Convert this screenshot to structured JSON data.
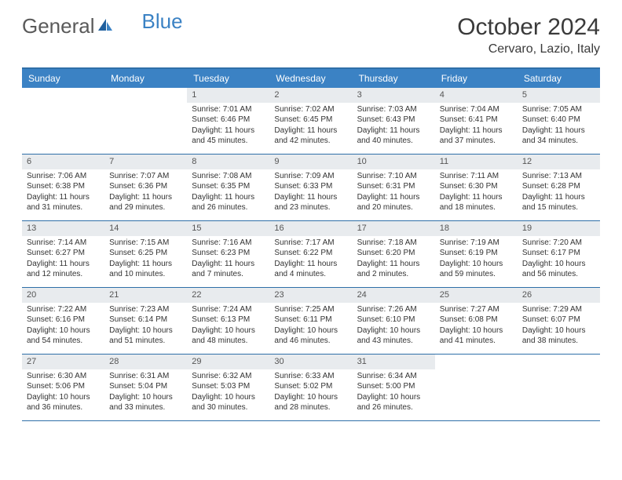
{
  "brand": {
    "part1": "General",
    "part2": "Blue"
  },
  "title": "October 2024",
  "location": "Cervaro, Lazio, Italy",
  "colors": {
    "header_bg": "#3b82c4",
    "border": "#2f6fa8",
    "daynum_bg": "#e8ebee",
    "text": "#333333",
    "brand_gray": "#5a5a5a"
  },
  "day_names": [
    "Sunday",
    "Monday",
    "Tuesday",
    "Wednesday",
    "Thursday",
    "Friday",
    "Saturday"
  ],
  "weeks": [
    [
      null,
      null,
      {
        "n": "1",
        "sr": "7:01 AM",
        "ss": "6:46 PM",
        "dl": "11 hours and 45 minutes."
      },
      {
        "n": "2",
        "sr": "7:02 AM",
        "ss": "6:45 PM",
        "dl": "11 hours and 42 minutes."
      },
      {
        "n": "3",
        "sr": "7:03 AM",
        "ss": "6:43 PM",
        "dl": "11 hours and 40 minutes."
      },
      {
        "n": "4",
        "sr": "7:04 AM",
        "ss": "6:41 PM",
        "dl": "11 hours and 37 minutes."
      },
      {
        "n": "5",
        "sr": "7:05 AM",
        "ss": "6:40 PM",
        "dl": "11 hours and 34 minutes."
      }
    ],
    [
      {
        "n": "6",
        "sr": "7:06 AM",
        "ss": "6:38 PM",
        "dl": "11 hours and 31 minutes."
      },
      {
        "n": "7",
        "sr": "7:07 AM",
        "ss": "6:36 PM",
        "dl": "11 hours and 29 minutes."
      },
      {
        "n": "8",
        "sr": "7:08 AM",
        "ss": "6:35 PM",
        "dl": "11 hours and 26 minutes."
      },
      {
        "n": "9",
        "sr": "7:09 AM",
        "ss": "6:33 PM",
        "dl": "11 hours and 23 minutes."
      },
      {
        "n": "10",
        "sr": "7:10 AM",
        "ss": "6:31 PM",
        "dl": "11 hours and 20 minutes."
      },
      {
        "n": "11",
        "sr": "7:11 AM",
        "ss": "6:30 PM",
        "dl": "11 hours and 18 minutes."
      },
      {
        "n": "12",
        "sr": "7:13 AM",
        "ss": "6:28 PM",
        "dl": "11 hours and 15 minutes."
      }
    ],
    [
      {
        "n": "13",
        "sr": "7:14 AM",
        "ss": "6:27 PM",
        "dl": "11 hours and 12 minutes."
      },
      {
        "n": "14",
        "sr": "7:15 AM",
        "ss": "6:25 PM",
        "dl": "11 hours and 10 minutes."
      },
      {
        "n": "15",
        "sr": "7:16 AM",
        "ss": "6:23 PM",
        "dl": "11 hours and 7 minutes."
      },
      {
        "n": "16",
        "sr": "7:17 AM",
        "ss": "6:22 PM",
        "dl": "11 hours and 4 minutes."
      },
      {
        "n": "17",
        "sr": "7:18 AM",
        "ss": "6:20 PM",
        "dl": "11 hours and 2 minutes."
      },
      {
        "n": "18",
        "sr": "7:19 AM",
        "ss": "6:19 PM",
        "dl": "10 hours and 59 minutes."
      },
      {
        "n": "19",
        "sr": "7:20 AM",
        "ss": "6:17 PM",
        "dl": "10 hours and 56 minutes."
      }
    ],
    [
      {
        "n": "20",
        "sr": "7:22 AM",
        "ss": "6:16 PM",
        "dl": "10 hours and 54 minutes."
      },
      {
        "n": "21",
        "sr": "7:23 AM",
        "ss": "6:14 PM",
        "dl": "10 hours and 51 minutes."
      },
      {
        "n": "22",
        "sr": "7:24 AM",
        "ss": "6:13 PM",
        "dl": "10 hours and 48 minutes."
      },
      {
        "n": "23",
        "sr": "7:25 AM",
        "ss": "6:11 PM",
        "dl": "10 hours and 46 minutes."
      },
      {
        "n": "24",
        "sr": "7:26 AM",
        "ss": "6:10 PM",
        "dl": "10 hours and 43 minutes."
      },
      {
        "n": "25",
        "sr": "7:27 AM",
        "ss": "6:08 PM",
        "dl": "10 hours and 41 minutes."
      },
      {
        "n": "26",
        "sr": "7:29 AM",
        "ss": "6:07 PM",
        "dl": "10 hours and 38 minutes."
      }
    ],
    [
      {
        "n": "27",
        "sr": "6:30 AM",
        "ss": "5:06 PM",
        "dl": "10 hours and 36 minutes."
      },
      {
        "n": "28",
        "sr": "6:31 AM",
        "ss": "5:04 PM",
        "dl": "10 hours and 33 minutes."
      },
      {
        "n": "29",
        "sr": "6:32 AM",
        "ss": "5:03 PM",
        "dl": "10 hours and 30 minutes."
      },
      {
        "n": "30",
        "sr": "6:33 AM",
        "ss": "5:02 PM",
        "dl": "10 hours and 28 minutes."
      },
      {
        "n": "31",
        "sr": "6:34 AM",
        "ss": "5:00 PM",
        "dl": "10 hours and 26 minutes."
      },
      null,
      null
    ]
  ],
  "labels": {
    "sunrise": "Sunrise: ",
    "sunset": "Sunset: ",
    "daylight": "Daylight: "
  }
}
